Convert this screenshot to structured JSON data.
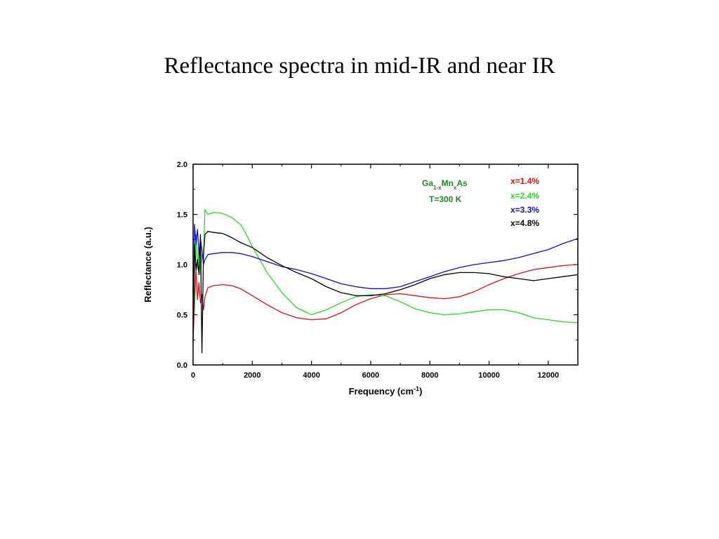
{
  "slide": {
    "title": "Reflectance spectra in mid-IR and near IR"
  },
  "chart_data": {
    "type": "line",
    "xlabel": "Frequency (cm",
    "xlabel_sup": "-1",
    "xlabel_end": ")",
    "ylabel": "Reflectance (a.u.)",
    "xlim": [
      0,
      13000
    ],
    "ylim": [
      0,
      2.0
    ],
    "x_ticks": [
      0,
      2000,
      4000,
      6000,
      8000,
      10000,
      12000
    ],
    "y_ticks": [
      0.0,
      0.5,
      1.0,
      1.5,
      2.0
    ],
    "y_tick_labels": [
      "0.0",
      "0.5",
      "1.0",
      "1.5",
      "2.0"
    ],
    "annotation": {
      "material": {
        "base": "Ga",
        "sub1": "1-x",
        "mid": "Mn",
        "sub2": "x",
        "end": "As"
      },
      "temperature": "T=300 K",
      "color": "#1a8c1a"
    },
    "legend_placement": "top-right",
    "series": [
      {
        "name": "x=1.4%",
        "color": "#e01010",
        "points": [
          [
            0,
            0.24
          ],
          [
            50,
            0.62
          ],
          [
            100,
            0.95
          ],
          [
            150,
            0.65
          ],
          [
            200,
            0.82
          ],
          [
            250,
            0.62
          ],
          [
            300,
            0.7
          ],
          [
            350,
            0.55
          ],
          [
            400,
            0.68
          ],
          [
            500,
            0.77
          ],
          [
            700,
            0.79
          ],
          [
            1000,
            0.8
          ],
          [
            1300,
            0.79
          ],
          [
            1600,
            0.76
          ],
          [
            2000,
            0.69
          ],
          [
            2500,
            0.6
          ],
          [
            3000,
            0.52
          ],
          [
            3500,
            0.47
          ],
          [
            4000,
            0.45
          ],
          [
            4500,
            0.46
          ],
          [
            5000,
            0.52
          ],
          [
            5500,
            0.6
          ],
          [
            6000,
            0.66
          ],
          [
            6500,
            0.7
          ],
          [
            7000,
            0.71
          ],
          [
            7500,
            0.69
          ],
          [
            8000,
            0.67
          ],
          [
            8500,
            0.66
          ],
          [
            9000,
            0.68
          ],
          [
            9500,
            0.73
          ],
          [
            10000,
            0.8
          ],
          [
            10500,
            0.86
          ],
          [
            11000,
            0.91
          ],
          [
            11500,
            0.95
          ],
          [
            12000,
            0.97
          ],
          [
            12500,
            0.99
          ],
          [
            13000,
            1.0
          ]
        ]
      },
      {
        "name": "x=2.4%",
        "color": "#22dd22",
        "points": [
          [
            0,
            0.3
          ],
          [
            50,
            0.9
          ],
          [
            100,
            1.3
          ],
          [
            150,
            0.95
          ],
          [
            200,
            1.15
          ],
          [
            250,
            0.9
          ],
          [
            300,
            1.1
          ],
          [
            350,
            1.05
          ],
          [
            400,
            1.55
          ],
          [
            500,
            1.5
          ],
          [
            700,
            1.52
          ],
          [
            1000,
            1.51
          ],
          [
            1300,
            1.47
          ],
          [
            1600,
            1.4
          ],
          [
            1800,
            1.3
          ],
          [
            2000,
            1.18
          ],
          [
            2500,
            0.92
          ],
          [
            3000,
            0.72
          ],
          [
            3500,
            0.57
          ],
          [
            4000,
            0.5
          ],
          [
            4500,
            0.55
          ],
          [
            5000,
            0.62
          ],
          [
            5500,
            0.68
          ],
          [
            6000,
            0.7
          ],
          [
            6500,
            0.69
          ],
          [
            7000,
            0.63
          ],
          [
            7500,
            0.56
          ],
          [
            8000,
            0.52
          ],
          [
            8500,
            0.5
          ],
          [
            9000,
            0.51
          ],
          [
            9500,
            0.53
          ],
          [
            10000,
            0.55
          ],
          [
            10500,
            0.55
          ],
          [
            11000,
            0.52
          ],
          [
            11500,
            0.47
          ],
          [
            12000,
            0.45
          ],
          [
            12500,
            0.43
          ],
          [
            13000,
            0.42
          ]
        ]
      },
      {
        "name": "x=3.3%",
        "color": "#1010cc",
        "points": [
          [
            0,
            0.2
          ],
          [
            50,
            1.4
          ],
          [
            100,
            1.2
          ],
          [
            150,
            1.35
          ],
          [
            200,
            1.1
          ],
          [
            250,
            1.25
          ],
          [
            300,
            1.15
          ],
          [
            350,
            1.0
          ],
          [
            400,
            1.05
          ],
          [
            500,
            1.1
          ],
          [
            700,
            1.11
          ],
          [
            1000,
            1.12
          ],
          [
            1300,
            1.12
          ],
          [
            1600,
            1.11
          ],
          [
            2000,
            1.08
          ],
          [
            2500,
            1.03
          ],
          [
            3000,
            0.98
          ],
          [
            3500,
            0.95
          ],
          [
            4000,
            0.91
          ],
          [
            4500,
            0.86
          ],
          [
            5000,
            0.81
          ],
          [
            5500,
            0.78
          ],
          [
            6000,
            0.76
          ],
          [
            6500,
            0.76
          ],
          [
            7000,
            0.78
          ],
          [
            7500,
            0.83
          ],
          [
            8000,
            0.88
          ],
          [
            8500,
            0.93
          ],
          [
            9000,
            0.97
          ],
          [
            9500,
            1.0
          ],
          [
            10000,
            1.02
          ],
          [
            10500,
            1.04
          ],
          [
            11000,
            1.07
          ],
          [
            11500,
            1.11
          ],
          [
            12000,
            1.15
          ],
          [
            12500,
            1.21
          ],
          [
            13000,
            1.26
          ]
        ]
      },
      {
        "name": "x=4.8%",
        "color": "#000000",
        "points": [
          [
            0,
            0.25
          ],
          [
            50,
            1.2
          ],
          [
            100,
            0.95
          ],
          [
            150,
            1.05
          ],
          [
            200,
            0.9
          ],
          [
            250,
            1.3
          ],
          [
            300,
            0.12
          ],
          [
            350,
            1.1
          ],
          [
            400,
            1.3
          ],
          [
            500,
            1.33
          ],
          [
            700,
            1.32
          ],
          [
            1000,
            1.31
          ],
          [
            1300,
            1.27
          ],
          [
            1600,
            1.22
          ],
          [
            2000,
            1.17
          ],
          [
            2500,
            1.07
          ],
          [
            3000,
            0.99
          ],
          [
            3500,
            0.92
          ],
          [
            4000,
            0.86
          ],
          [
            4500,
            0.78
          ],
          [
            5000,
            0.72
          ],
          [
            5500,
            0.69
          ],
          [
            6000,
            0.69
          ],
          [
            6500,
            0.71
          ],
          [
            7000,
            0.75
          ],
          [
            7500,
            0.8
          ],
          [
            8000,
            0.86
          ],
          [
            8500,
            0.9
          ],
          [
            9000,
            0.92
          ],
          [
            9500,
            0.92
          ],
          [
            10000,
            0.91
          ],
          [
            10500,
            0.88
          ],
          [
            11000,
            0.86
          ],
          [
            11500,
            0.84
          ],
          [
            12000,
            0.86
          ],
          [
            12500,
            0.88
          ],
          [
            13000,
            0.9
          ]
        ]
      }
    ]
  }
}
